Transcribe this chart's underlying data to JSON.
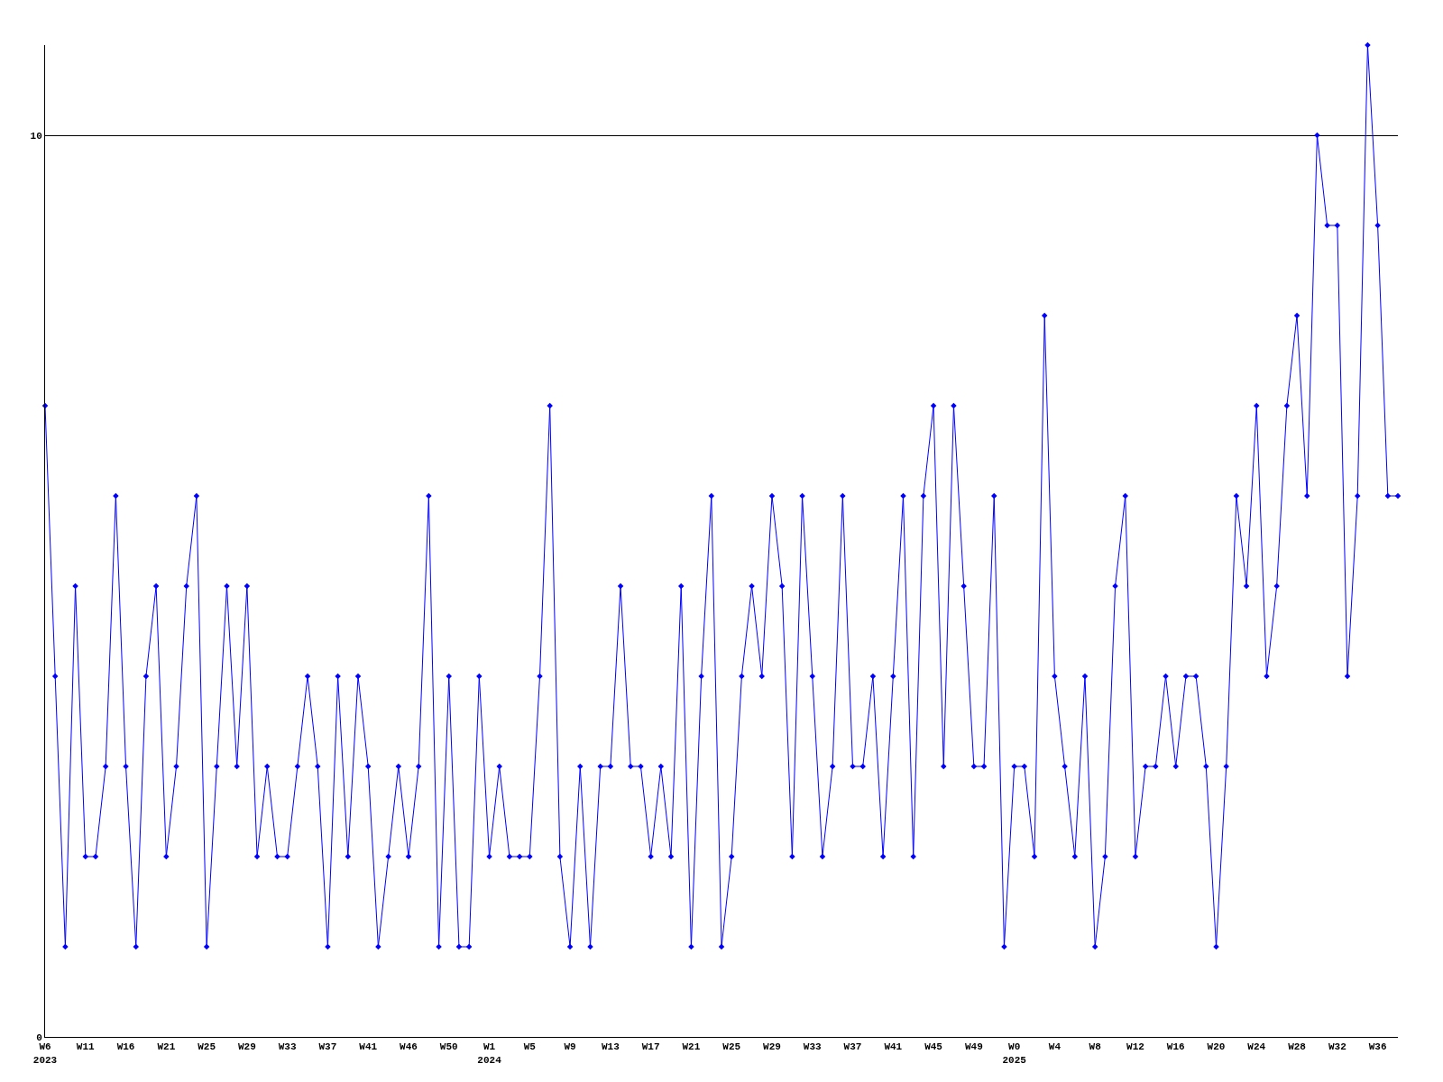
{
  "chart_data": {
    "type": "line",
    "categories": [
      "W6\n2023",
      null,
      null,
      null,
      "W11",
      null,
      null,
      null,
      "W16",
      null,
      null,
      null,
      "W21",
      null,
      null,
      null,
      "W25",
      null,
      null,
      null,
      "W29",
      null,
      null,
      null,
      "W33",
      null,
      null,
      null,
      "W37",
      null,
      null,
      null,
      "W41",
      null,
      null,
      null,
      "W46",
      null,
      null,
      null,
      "W50",
      null,
      null,
      null,
      "W1\n2024",
      null,
      null,
      null,
      "W5",
      null,
      null,
      null,
      "W9",
      null,
      null,
      null,
      "W13",
      null,
      null,
      null,
      "W17",
      null,
      null,
      null,
      "W21",
      null,
      null,
      null,
      "W25",
      null,
      null,
      null,
      "W29",
      null,
      null,
      null,
      "W33",
      null,
      null,
      null,
      "W37",
      null,
      null,
      null,
      "W41",
      null,
      null,
      null,
      "W45",
      null,
      null,
      null,
      "W49",
      null,
      null,
      null,
      "W0\n2025",
      null,
      null,
      null,
      "W4",
      null,
      null,
      null,
      "W8",
      null,
      null,
      null,
      "W12",
      null,
      null,
      null,
      "W16",
      null,
      null,
      null,
      "W20",
      null,
      null,
      null,
      "W24",
      null,
      null,
      null,
      "W28",
      null,
      null,
      null,
      "W32",
      null,
      null,
      null,
      "W36",
      null,
      null
    ],
    "series": [
      {
        "color": "#0000ff",
        "values": [
          7,
          4,
          1,
          5,
          2,
          2,
          3,
          6,
          3,
          1,
          4,
          5,
          2,
          3,
          5,
          6,
          1,
          3,
          5,
          3,
          5,
          2,
          3,
          2,
          2,
          3,
          4,
          3,
          1,
          4,
          2,
          4,
          3,
          1,
          2,
          3,
          2,
          3,
          6,
          1,
          4,
          1,
          1,
          4,
          2,
          3,
          2,
          2,
          2,
          4,
          7,
          2,
          1,
          3,
          1,
          3,
          3,
          5,
          3,
          3,
          2,
          3,
          2,
          5,
          1,
          4,
          6,
          1,
          2,
          4,
          5,
          4,
          6,
          5,
          2,
          6,
          4,
          2,
          3,
          6,
          3,
          3,
          4,
          2,
          4,
          6,
          2,
          6,
          7,
          3,
          7,
          5,
          3,
          3,
          6,
          1,
          3,
          3,
          2,
          8,
          4,
          3,
          2,
          4,
          1,
          2,
          5,
          6,
          2,
          3,
          3,
          4,
          3,
          4,
          4,
          3,
          1,
          3,
          6,
          5,
          7,
          4,
          5,
          7,
          8,
          6,
          10,
          9,
          9,
          4,
          6,
          11,
          9,
          6,
          6
        ]
      }
    ],
    "ylim": [
      0,
      11
    ],
    "yticks": [
      0,
      10
    ],
    "grid": "y",
    "marker": "diamond",
    "line_style": "solid"
  }
}
